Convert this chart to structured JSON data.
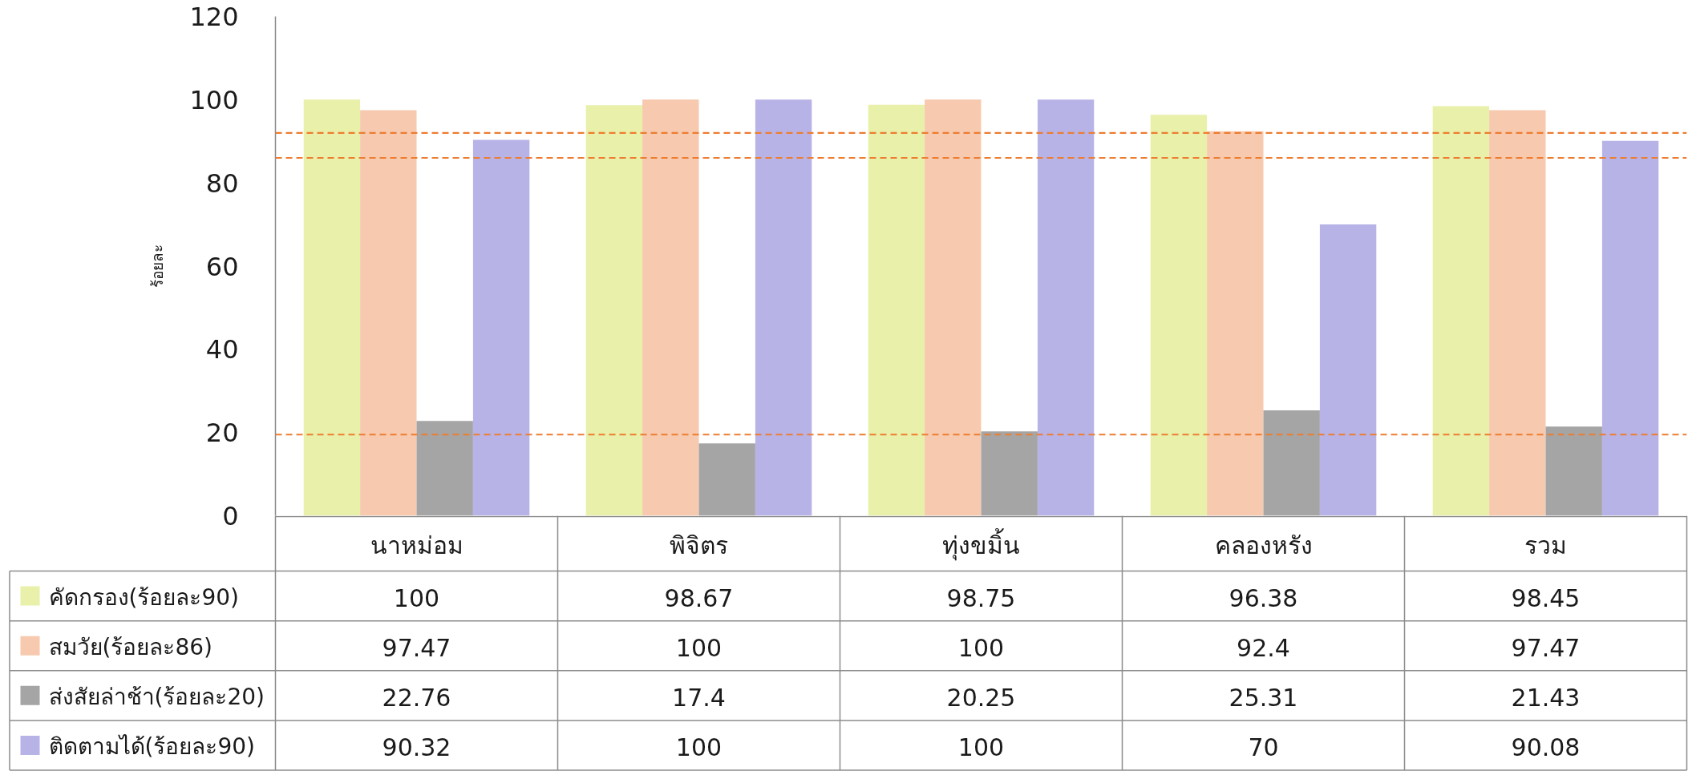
{
  "chart_data": {
    "type": "bar",
    "ylabel": "ร้อยละ",
    "categories": [
      "นาหม่อม",
      "พิจิตร",
      "ทุ่งขมิ้น",
      "คลองหรัง",
      "รวม"
    ],
    "series": [
      {
        "name": "คัดกรอง(ร้อยละ90)",
        "color": "#e9f0a9",
        "values": [
          100,
          98.67,
          98.75,
          96.38,
          98.45
        ]
      },
      {
        "name": "สมวัย(ร้อยละ86)",
        "color": "#f7c9ae",
        "values": [
          97.47,
          100,
          100,
          92.4,
          97.47
        ]
      },
      {
        "name": "ส่งสัยล่าช้า(ร้อยละ20)",
        "color": "#a5a5a5",
        "values": [
          22.76,
          17.4,
          20.25,
          25.31,
          21.43
        ]
      },
      {
        "name": "ติดตามได้(ร้อยละ90)",
        "color": "#b7b3e7",
        "values": [
          90.32,
          100,
          100,
          70,
          90.08
        ]
      }
    ],
    "ylim": [
      0,
      120
    ],
    "yticks": [
      0,
      20,
      40,
      60,
      80,
      100,
      120
    ],
    "ref_lines": [
      {
        "axis": "y",
        "value": 92,
        "color": "#ed7d31",
        "line_style": "dashed"
      },
      {
        "axis": "y",
        "value": 86,
        "color": "#ed7d31",
        "line_style": "dashed"
      },
      {
        "axis": "y",
        "value": 19.5,
        "color": "#ed7d31",
        "line_style": "dashed"
      }
    ],
    "data_labels": true,
    "legend": "bottom"
  }
}
